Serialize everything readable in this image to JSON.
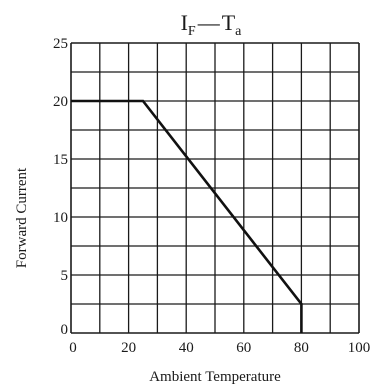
{
  "chart_data": {
    "type": "line",
    "title": {
      "main_a": "I",
      "sub_a": "F",
      "dash": "—",
      "main_b": "T",
      "sub_b": "a"
    },
    "xlabel": "Ambient Temperature",
    "ylabel": "Forward Current",
    "xlim": [
      0,
      100
    ],
    "ylim": [
      0,
      25
    ],
    "x_ticks": [
      0,
      20,
      40,
      60,
      80,
      100
    ],
    "y_ticks": [
      0,
      5,
      10,
      15,
      20,
      25
    ],
    "x_grid_step": 10,
    "y_grid_step": 2.5,
    "grid": true,
    "series": [
      {
        "x": [
          0,
          25,
          80,
          80
        ],
        "y": [
          20,
          20,
          2.5,
          0
        ]
      }
    ]
  }
}
